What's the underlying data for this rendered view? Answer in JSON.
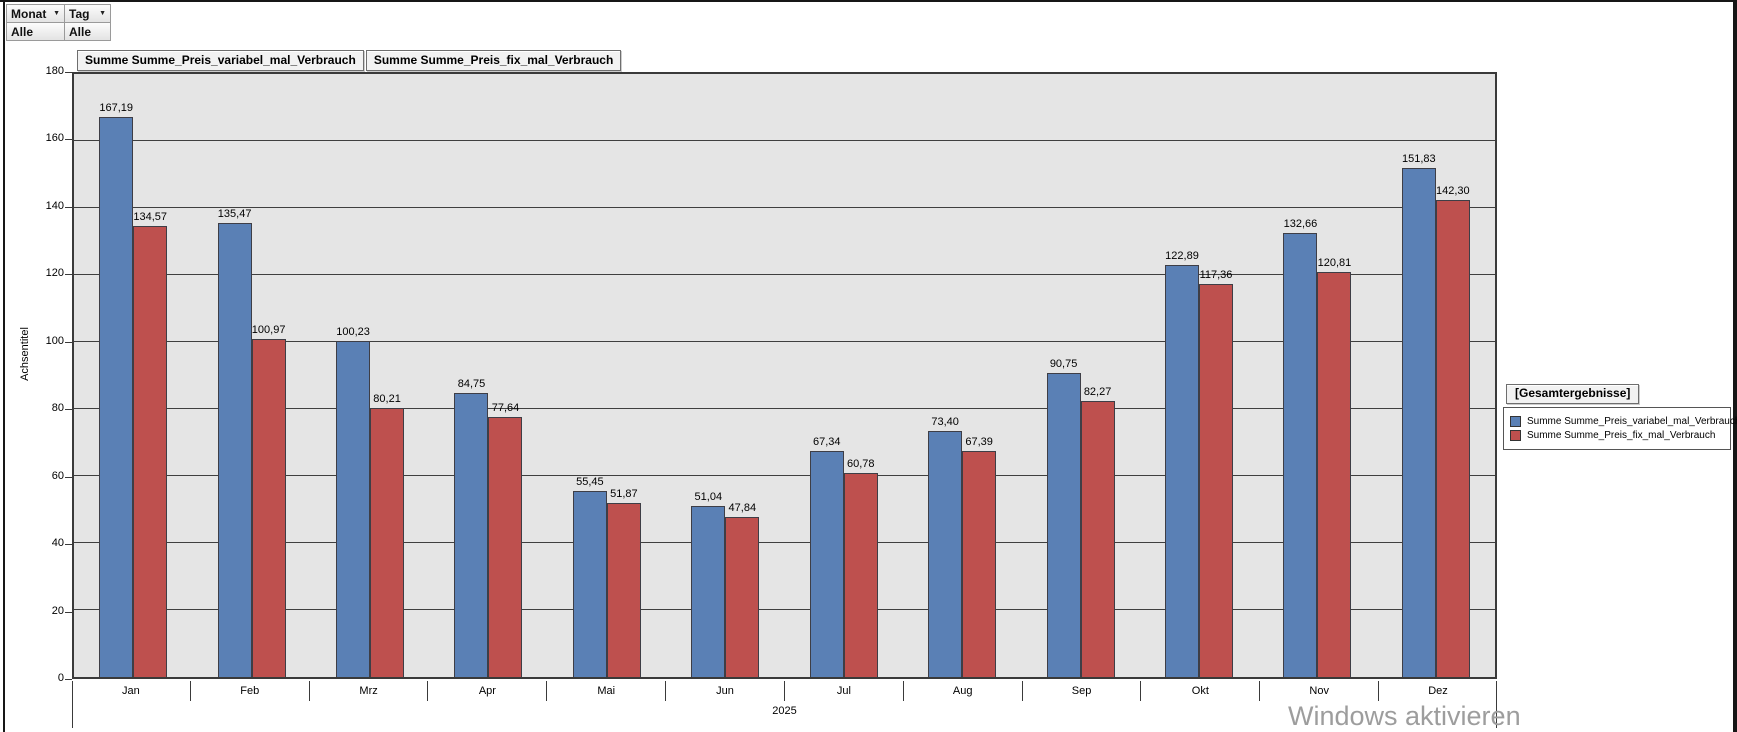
{
  "filters": {
    "fields": [
      {
        "label": "Monat"
      },
      {
        "label": "Tag"
      }
    ],
    "values": [
      "Alle",
      "Alle"
    ],
    "dropdown_icon": "▼"
  },
  "field_buttons": [
    "Summe Summe_Preis_variabel_mal_Verbrauch",
    "Summe Summe_Preis_fix_mal_Verbrauch"
  ],
  "chart_data": {
    "type": "bar",
    "categories": [
      "Jan",
      "Feb",
      "Mrz",
      "Apr",
      "Mai",
      "Jun",
      "Jul",
      "Aug",
      "Sep",
      "Okt",
      "Nov",
      "Dez"
    ],
    "x_group_label": "2025",
    "ylabel": "Achsentitel",
    "ylim": [
      0,
      180
    ],
    "ytick_interval": 20,
    "grid": true,
    "legend_title": "[Gesamtergebnisse]",
    "legend_position": "right",
    "plot_bg": "#E5E5E5",
    "series": [
      {
        "name": "Summe Summe_Preis_variabel_mal_Verbrauch",
        "color": "#5A80B5",
        "values": [
          167.19,
          135.47,
          100.23,
          84.75,
          55.45,
          51.04,
          67.34,
          73.4,
          90.75,
          122.89,
          132.66,
          151.83
        ],
        "labels": [
          "167,19",
          "135,47",
          "100,23",
          "84,75",
          "55,45",
          "51,04",
          "67,34",
          "73,40",
          "90,75",
          "122,89",
          "132,66",
          "151,83"
        ]
      },
      {
        "name": "Summe Summe_Preis_fix_mal_Verbrauch",
        "color": "#BE504E",
        "values": [
          134.57,
          100.97,
          80.21,
          77.64,
          51.87,
          47.84,
          60.78,
          67.39,
          82.27,
          117.36,
          120.81,
          142.3
        ],
        "labels": [
          "134,57",
          "100,97",
          "80,21",
          "77,64",
          "51,87",
          "47,84",
          "60,78",
          "67,39",
          "82,27",
          "117,36",
          "120,81",
          "142,30"
        ]
      }
    ]
  },
  "watermark": "Windows aktivieren"
}
